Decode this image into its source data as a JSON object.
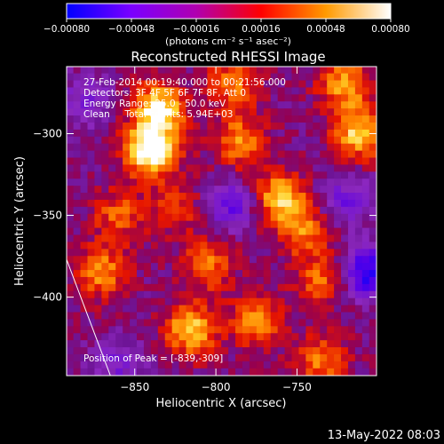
{
  "chart_data": {
    "type": "heatmap",
    "title": "Reconstructed RHESSI Image",
    "colorbar": {
      "unit_label": "(photons cm⁻² s⁻¹ asec⁻²)",
      "range": [
        -0.0008,
        0.0008
      ],
      "ticks": [
        "-0.00080",
        "-0.00048",
        "-0.00016",
        "0.00016",
        "0.00048",
        "0.00080"
      ],
      "colors": [
        "#0000ff",
        "#7a00ff",
        "#b000b0",
        "#ff0000",
        "#ff9a00",
        "#ffffff"
      ]
    },
    "annotations": [
      "27-Feb-2014 00:19:40.000 to 00:21:56.000",
      "Detectors: 3F 4F 5F 6F 7F 8F, Att 0",
      "Energy Range: 25.0 - 50.0 keV",
      "Clean     Total counts: 5.94E+03"
    ],
    "peak_label": "Position of Peak = [-839,-309]",
    "peak": {
      "x": -839,
      "y": -309
    },
    "xlabel": "Heliocentric X (arcsec)",
    "ylabel": "Heliocentric Y (arcsec)",
    "xlim": [
      -892,
      -701
    ],
    "ylim": [
      -448,
      -259
    ],
    "x_ticks": [
      -850,
      -800,
      -750
    ],
    "y_ticks": [
      -300,
      -350,
      -400
    ],
    "x_tick_labels": [
      "−850",
      "−800",
      "−750"
    ],
    "y_tick_labels": [
      "−300",
      "−350",
      "−400"
    ],
    "limb_line": [
      [
        -892,
        -377
      ],
      [
        -865,
        -448
      ]
    ],
    "hotspots": [
      {
        "x": -840,
        "y": -310,
        "v": 0.00085
      },
      {
        "x": -835,
        "y": -285,
        "v": 0.0007
      },
      {
        "x": -785,
        "y": -305,
        "v": 0.00045
      },
      {
        "x": -760,
        "y": -340,
        "v": 0.0006
      },
      {
        "x": -745,
        "y": -360,
        "v": 0.0004
      },
      {
        "x": -712,
        "y": -300,
        "v": 0.0006
      },
      {
        "x": -870,
        "y": -385,
        "v": 0.00045
      },
      {
        "x": -815,
        "y": -420,
        "v": 0.0006
      },
      {
        "x": -805,
        "y": -380,
        "v": 0.0004
      },
      {
        "x": -775,
        "y": -415,
        "v": 0.00045
      },
      {
        "x": -735,
        "y": -440,
        "v": 0.0004
      },
      {
        "x": -860,
        "y": -350,
        "v": 0.00035
      },
      {
        "x": -720,
        "y": -270,
        "v": 0.0005
      },
      {
        "x": -790,
        "y": -270,
        "v": 0.0004
      },
      {
        "x": -735,
        "y": -390,
        "v": 0.00035
      },
      {
        "x": -825,
        "y": -345,
        "v": 0.0003
      }
    ],
    "coldspots": [
      {
        "x": -790,
        "y": -345,
        "v": -0.0004
      },
      {
        "x": -705,
        "y": -385,
        "v": -0.0007
      },
      {
        "x": -880,
        "y": -280,
        "v": -0.0003
      },
      {
        "x": -860,
        "y": -440,
        "v": -0.0003
      },
      {
        "x": -720,
        "y": -340,
        "v": -0.00035
      }
    ]
  },
  "footer": {
    "timestamp": "13-May-2022 08:03"
  }
}
